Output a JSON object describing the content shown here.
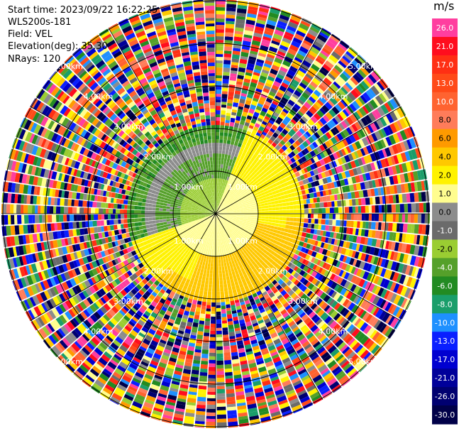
{
  "info": {
    "start_time": "Start time: 2023/09/22 16:22:25",
    "station": "WLS200s-181",
    "field": "Field: VEL",
    "elevation": "Elevation(deg): 35.30",
    "nrays": "NRays: 120"
  },
  "colorbar": {
    "unit": "m/s",
    "entries": [
      {
        "label": "26.0",
        "color": "#ff3e9f"
      },
      {
        "label": "21.0",
        "color": "#ff0d1e"
      },
      {
        "label": "17.0",
        "color": "#ff2f14"
      },
      {
        "label": "13.0",
        "color": "#ff4a18"
      },
      {
        "label": "10.0",
        "color": "#ff6330"
      },
      {
        "label": "8.0",
        "color": "#ff7c5a"
      },
      {
        "label": "6.0",
        "color": "#ff9a00"
      },
      {
        "label": "4.0",
        "color": "#ffc800"
      },
      {
        "label": "2.0",
        "color": "#fff200"
      },
      {
        "label": "1.0",
        "color": "#fffd8f"
      },
      {
        "label": "0.0",
        "color": "#8c8c8c"
      },
      {
        "label": "-1.0",
        "color": "#6b6b6b"
      },
      {
        "label": "-2.0",
        "color": "#9acd32"
      },
      {
        "label": "-4.0",
        "color": "#55a02a"
      },
      {
        "label": "-6.0",
        "color": "#228b22"
      },
      {
        "label": "-8.0",
        "color": "#1a9e6a"
      },
      {
        "label": "-10.0",
        "color": "#1e90ff"
      },
      {
        "label": "-13.0",
        "color": "#0a1fff"
      },
      {
        "label": "-17.0",
        "color": "#0000d0"
      },
      {
        "label": "-21.0",
        "color": "#00009a"
      },
      {
        "label": "-26.0",
        "color": "#000070"
      },
      {
        "label": "-30.0",
        "color": "#000048"
      }
    ]
  },
  "range_labels": {
    "r1": "1.00km",
    "r2": "2.00km",
    "r3": "3.00km",
    "r4": "4.00km",
    "r5": "5.00km"
  }
}
